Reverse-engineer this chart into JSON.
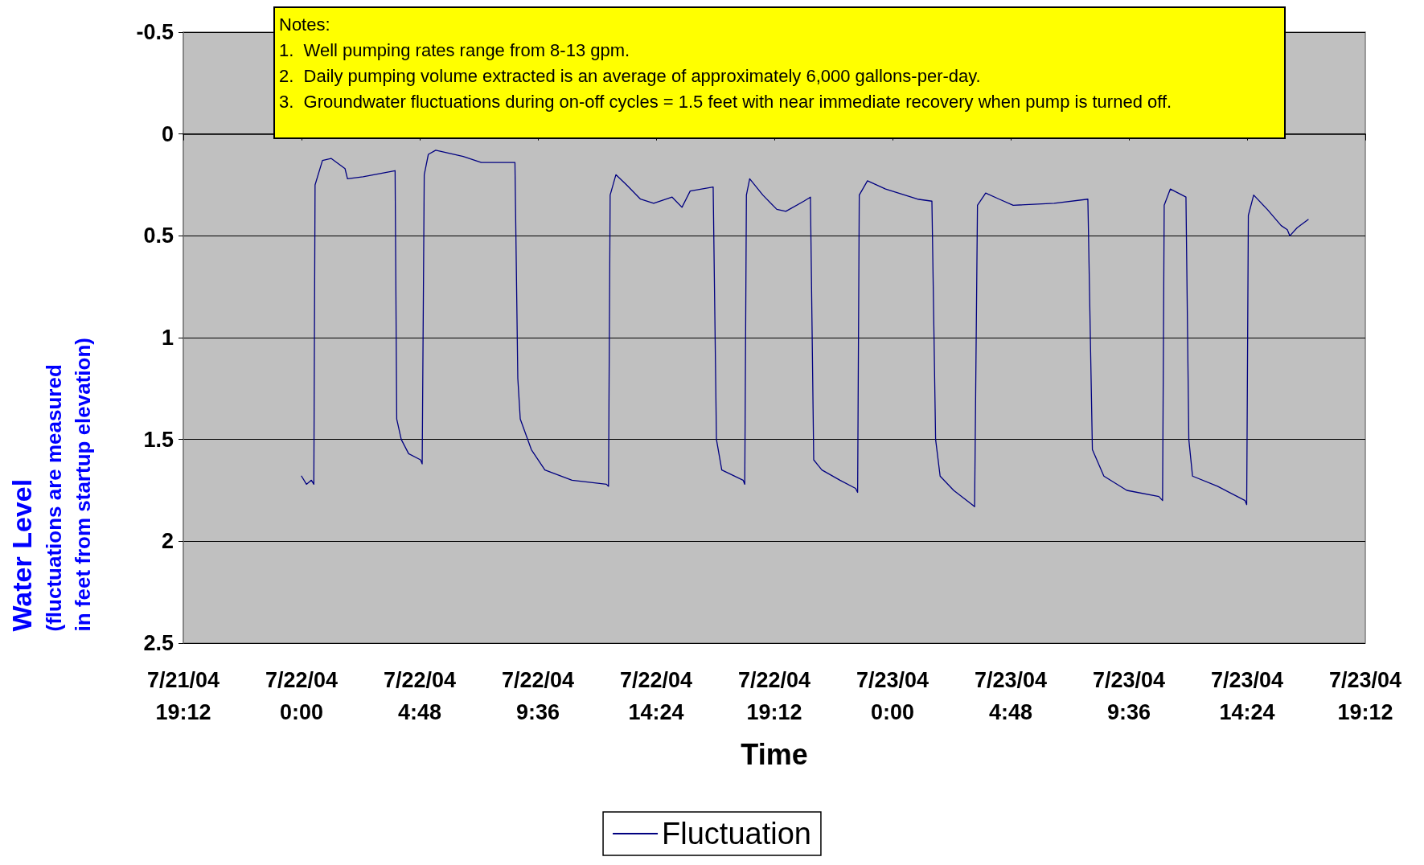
{
  "chart_data": {
    "type": "line",
    "xlabel": "Time",
    "ylabel": "Water Level\n(fluctuations are measured\nin feet from startup elevation)",
    "annotations": [
      "Notes:",
      "1.  Well pumping rates range from 8-13 gpm.",
      "2.  Daily pumping volume extracted is an average of approximately 6,000 gallons-per-day.",
      "3.  Groundwater fluctuations during on-off cycles = 1.5 feet with near immediate recovery when pump is turned off."
    ],
    "x": [
      "--07-22T00:00",
      "--07-22T00:12",
      "--07-22T00:24",
      "--07-22T00:30",
      "--07-22T00:33",
      "--07-22T00:51",
      "--07-22T01:12",
      "--07-22T01:46",
      "--07-22T01:52",
      "--07-22T02:30",
      "--07-22T03:48",
      "--07-22T03:52",
      "--07-22T04:03",
      "--07-22T04:21",
      "--07-22T04:50",
      "--07-22T04:54",
      "--07-22T04:59",
      "--07-22T05:09",
      "--07-22T05:27",
      "--07-22T06:34",
      "--07-22T07:18",
      "--07-22T08:40",
      "--07-22T08:47",
      "--07-22T08:53",
      "--07-22T09:20",
      "--07-22T09:53",
      "--07-22T10:59",
      "--07-22T12:23",
      "--07-22T12:28",
      "--07-22T12:32",
      "--07-22T12:46",
      "--07-22T13:12",
      "--07-22T13:46",
      "--07-22T14:18",
      "--07-22T15:03",
      "--07-22T15:27",
      "--07-22T15:47",
      "--07-22T16:43",
      "--07-22T16:51",
      "--07-22T17:04",
      "--07-22T17:56",
      "--07-22T18:00",
      "--07-22T18:04",
      "--07-22T18:12",
      "--07-22T18:44",
      "--07-22T19:18",
      "--07-22T19:40",
      "--07-22T20:24",
      "--07-22T20:40",
      "--07-22T20:48",
      "--07-22T21:08",
      "--07-22T21:52",
      "--07-22T22:30",
      "--07-22T22:35",
      "--07-22T22:39",
      "--07-22T22:59",
      "--07-22T23:43",
      "--07-23T01:01",
      "--07-23T01:36",
      "--07-23T01:45",
      "--07-23T01:56",
      "--07-23T02:29",
      "--07-23T03:14",
      "--07-23T03:20",
      "--07-23T03:27",
      "--07-23T03:47",
      "--07-23T04:20",
      "--07-23T04:54",
      "--07-23T06:34",
      "--07-23T07:56",
      "--07-23T08:07",
      "--07-23T08:35",
      "--07-23T09:31",
      "--07-23T10:49",
      "--07-23T10:58",
      "--07-23T11:02",
      "--07-23T11:17",
      "--07-23T11:55",
      "--07-23T12:02",
      "--07-23T12:11",
      "--07-23T13:12",
      "--07-23T14:19",
      "--07-23T14:23",
      "--07-23T14:27",
      "--07-23T14:40",
      "--07-23T15:13",
      "--07-23T15:47",
      "--07-23T16:02",
      "--07-23T16:08",
      "--07-23T16:26",
      "--07-23T16:53"
    ],
    "series": [
      {
        "name": "Fluctuation",
        "color": "#000080",
        "values": [
          1.68,
          1.72,
          1.7,
          1.72,
          0.25,
          0.13,
          0.12,
          0.17,
          0.22,
          0.21,
          0.18,
          1.4,
          1.5,
          1.57,
          1.6,
          1.62,
          0.2,
          0.1,
          0.08,
          0.11,
          0.14,
          0.14,
          1.2,
          1.4,
          1.55,
          1.65,
          1.7,
          1.72,
          1.73,
          0.3,
          0.2,
          0.25,
          0.32,
          0.34,
          0.31,
          0.36,
          0.28,
          0.26,
          1.5,
          1.65,
          1.7,
          1.72,
          0.3,
          0.22,
          0.3,
          0.37,
          0.38,
          0.33,
          0.31,
          1.6,
          1.65,
          1.7,
          1.74,
          1.76,
          0.3,
          0.23,
          0.27,
          0.32,
          0.33,
          1.5,
          1.68,
          1.75,
          1.82,
          1.83,
          0.35,
          0.29,
          0.32,
          0.35,
          0.34,
          0.32,
          1.55,
          1.68,
          1.75,
          1.78,
          1.8,
          0.35,
          0.27,
          0.31,
          1.5,
          1.68,
          1.73,
          1.8,
          1.82,
          0.4,
          0.3,
          0.37,
          0.45,
          0.47,
          0.5,
          0.46,
          0.42
        ]
      }
    ],
    "xlim": [
      "--07-21T19:12",
      "--07-23T19:12"
    ],
    "xticks": [
      {
        "value": "--07-21T19:12",
        "label": "7/21/04\n19:12"
      },
      {
        "value": "--07-22T00:00",
        "label": "7/22/04\n0:00"
      },
      {
        "value": "--07-22T04:48",
        "label": "7/22/04\n4:48"
      },
      {
        "value": "--07-22T09:36",
        "label": "7/22/04\n9:36"
      },
      {
        "value": "--07-22T14:24",
        "label": "7/22/04\n14:24"
      },
      {
        "value": "--07-22T19:12",
        "label": "7/22/04\n19:12"
      },
      {
        "value": "--07-23T00:00",
        "label": "7/23/04\n0:00"
      },
      {
        "value": "--07-23T04:48",
        "label": "7/23/04\n4:48"
      },
      {
        "value": "--07-23T09:36",
        "label": "7/23/04\n9:36"
      },
      {
        "value": "--07-23T14:24",
        "label": "7/23/04\n14:24"
      },
      {
        "value": "--07-23T19:12",
        "label": "7/23/04\n19:12"
      }
    ],
    "ylim": [
      2.5,
      -0.5
    ],
    "yticks": [
      -0.5,
      0,
      0.5,
      1,
      1.5,
      2,
      2.5
    ],
    "grid": "y",
    "legend": "bottom",
    "marker": "none",
    "line_style": "solid"
  }
}
